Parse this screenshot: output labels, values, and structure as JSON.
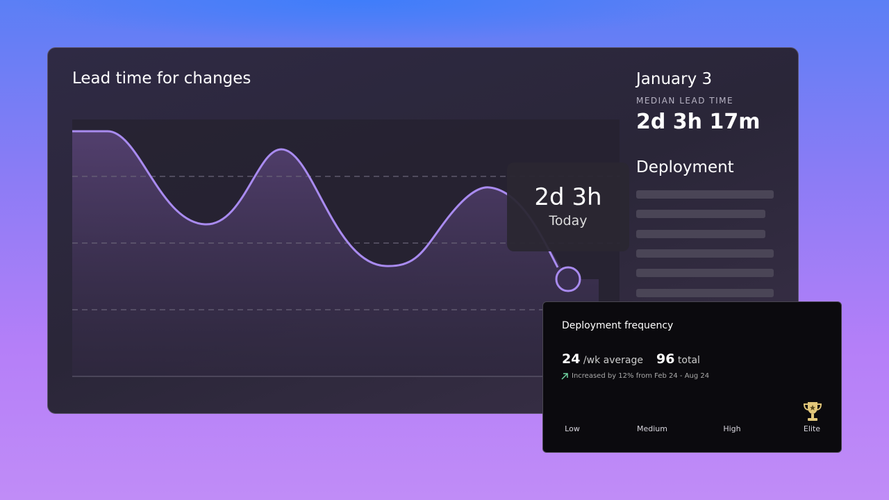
{
  "lead_time_panel": {
    "title": "Lead time for changes",
    "tooltip": {
      "value": "2d 3h",
      "label": "Today"
    }
  },
  "summary": {
    "date": "January 3",
    "metric_label": "MEDIAN LEAD TIME",
    "metric_value": "2d 3h 17m",
    "section_title": "Deployment"
  },
  "deployment_card": {
    "title": "Deployment frequency",
    "average": {
      "value": 24,
      "unit": "/wk average"
    },
    "total": {
      "value": 96,
      "unit": "total"
    },
    "change_note": "Increased by 12% from Feb 24 - Aug 24",
    "levels": [
      "Low",
      "Medium",
      "High",
      "Elite"
    ]
  }
}
